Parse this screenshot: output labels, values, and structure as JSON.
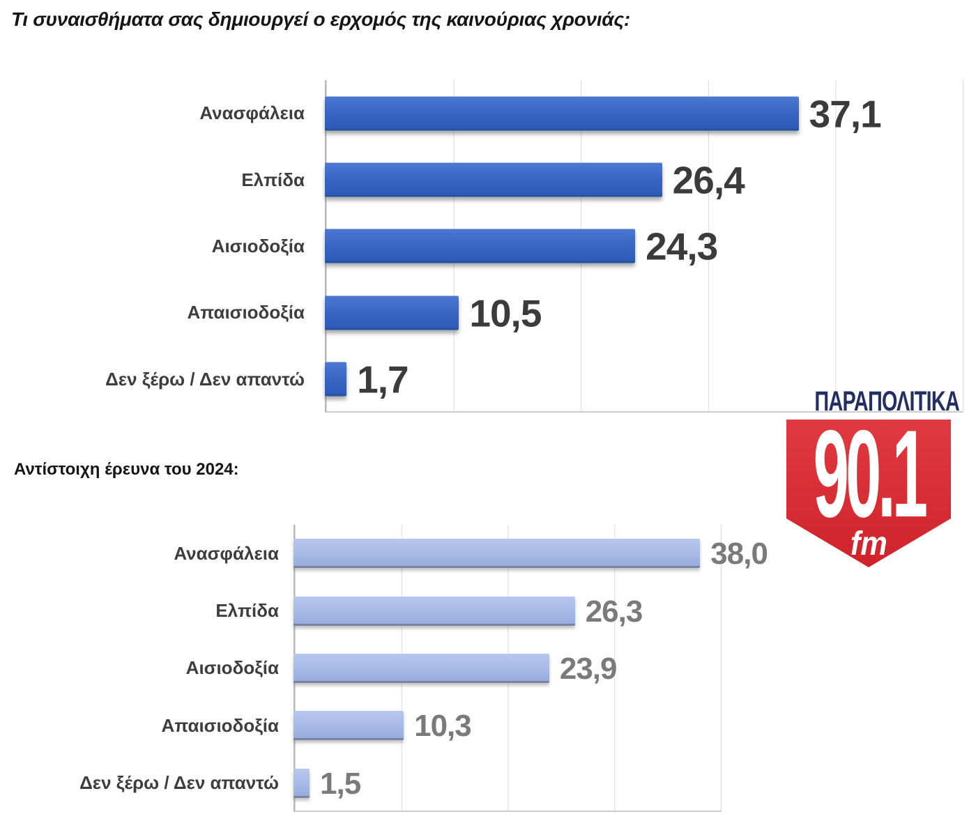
{
  "page": {
    "background": "#ffffff"
  },
  "title": "Τι συναισθήματα σας δημιουργεί ο ερχομός της καινούριας χρονιάς:",
  "subtitle": "Αντίστοιχη έρευνα του 2024:",
  "logo": {
    "wordmark": "ΠΑΡΑΠΟΛΙΤΙΚΑ",
    "frequency": "90.1",
    "band": "fm",
    "navy": "#232e63",
    "red": "#d7282f"
  },
  "chart_data": [
    {
      "type": "bar",
      "orientation": "horizontal",
      "title": "Τι συναισθήματα σας δημιουργεί ο ερχομός της καινούριας χρονιάς:",
      "categories": [
        "Ανασφάλεια",
        "Ελπίδα",
        "Αισιοδοξία",
        "Απαισιοδοξία",
        "Δεν ξέρω / Δεν απαντώ"
      ],
      "values": [
        37.1,
        26.4,
        24.3,
        10.5,
        1.7
      ],
      "value_labels": [
        "37,1",
        "26,4",
        "24,3",
        "10,5",
        "1,7"
      ],
      "xlim": [
        0,
        50
      ],
      "gridline_step": 10,
      "grid": true,
      "legend": "none",
      "bar_color": "#3a67c6",
      "value_color": "#3b3b3b",
      "label_color": "#3d3d3d"
    },
    {
      "type": "bar",
      "orientation": "horizontal",
      "title": "Αντίστοιχη έρευνα του 2024:",
      "categories": [
        "Ανασφάλεια",
        "Ελπίδα",
        "Αισιοδοξία",
        "Απαισιοδοξία",
        "Δεν ξέρω / Δεν απαντώ"
      ],
      "values": [
        38.0,
        26.3,
        23.9,
        10.3,
        1.5
      ],
      "value_labels": [
        "38,0",
        "26,3",
        "23,9",
        "10,3",
        "1,5"
      ],
      "xlim": [
        0,
        40
      ],
      "gridline_step": 10,
      "grid": true,
      "legend": "none",
      "bar_color": "#a7bae6",
      "value_color": "#7a7a7a",
      "label_color": "#3d3d3d"
    }
  ]
}
